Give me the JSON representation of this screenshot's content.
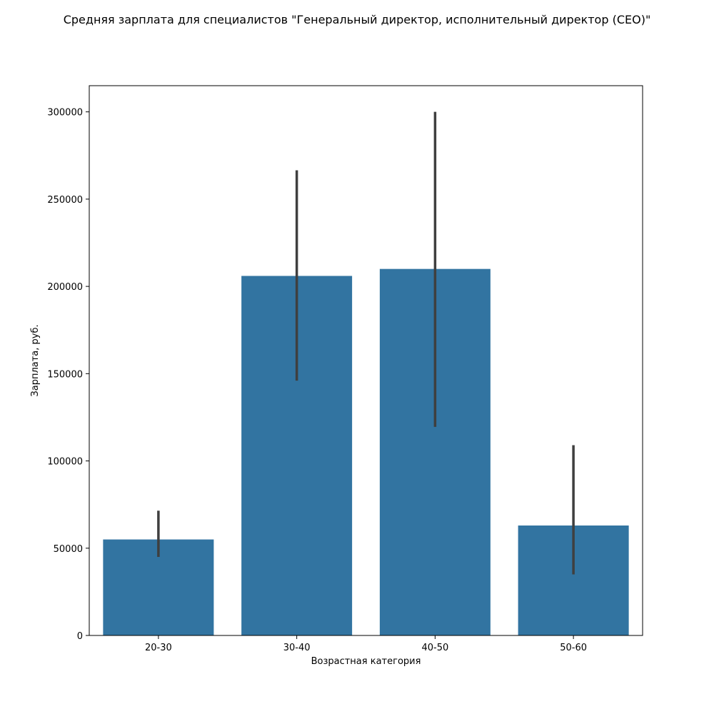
{
  "chart_data": {
    "type": "bar",
    "title": "Средняя зарплата для специалистов \"Генеральный директор, исполнительный директор (CEO)\"",
    "xlabel": "Возрастная категория",
    "ylabel": "Зарплата, руб.",
    "categories": [
      "20-30",
      "30-40",
      "40-50",
      "50-60"
    ],
    "values": [
      55000,
      206000,
      210000,
      63000
    ],
    "error_bars": [
      {
        "low": 45000,
        "high": 71500
      },
      {
        "low": 146000,
        "high": 266500
      },
      {
        "low": 119500,
        "high": 300000
      },
      {
        "low": 35000,
        "high": 109000
      }
    ],
    "ylim": [
      0,
      315000
    ],
    "yticks": [
      0,
      50000,
      100000,
      150000,
      200000,
      250000,
      300000
    ],
    "ytick_labels": [
      "0",
      "50000",
      "100000",
      "150000",
      "200000",
      "250000",
      "300000"
    ],
    "grid": false,
    "colors": {
      "bar": "#3274a1",
      "error_bar": "#3f3f3f",
      "axes": "#000000"
    }
  }
}
